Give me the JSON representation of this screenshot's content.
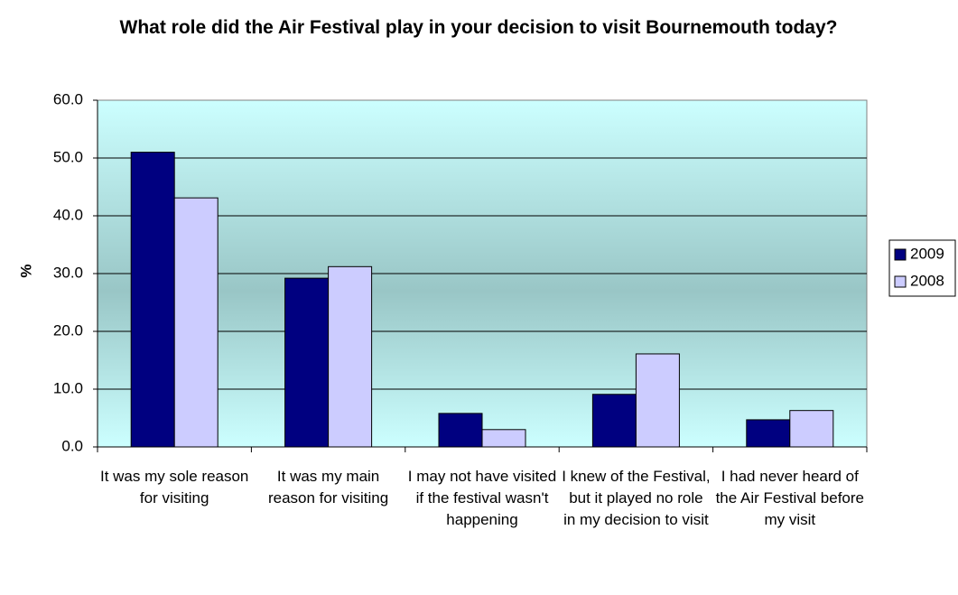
{
  "chart_data": {
    "type": "bar",
    "title": "What role did the Air Festival play in your decision to visit Bournemouth today?",
    "y_label": "%",
    "categories": [
      "It was my sole reason for visiting",
      "It was my main reason for visiting",
      "I may not have visited if the festival wasn't happening",
      "I knew of the Festival, but it played no role in my decision to visit",
      "I had never heard of the Air Festival before my visit"
    ],
    "series": [
      {
        "name": "2009",
        "color": "#000080",
        "values": [
          51.0,
          29.2,
          5.8,
          9.1,
          4.7
        ]
      },
      {
        "name": "2008",
        "color": "#ccccff",
        "values": [
          43.1,
          31.2,
          3.0,
          16.1,
          6.3
        ]
      }
    ],
    "ylim": [
      0,
      60
    ],
    "yticks": [
      {
        "value": 0,
        "label": "0.0"
      },
      {
        "value": 10,
        "label": "10.0"
      },
      {
        "value": 20,
        "label": "20.0"
      },
      {
        "value": 30,
        "label": "30.0"
      },
      {
        "value": 40,
        "label": "40.0"
      },
      {
        "value": 50,
        "label": "50.0"
      },
      {
        "value": 60,
        "label": "60.0"
      }
    ],
    "grid": true,
    "legend": "right"
  }
}
